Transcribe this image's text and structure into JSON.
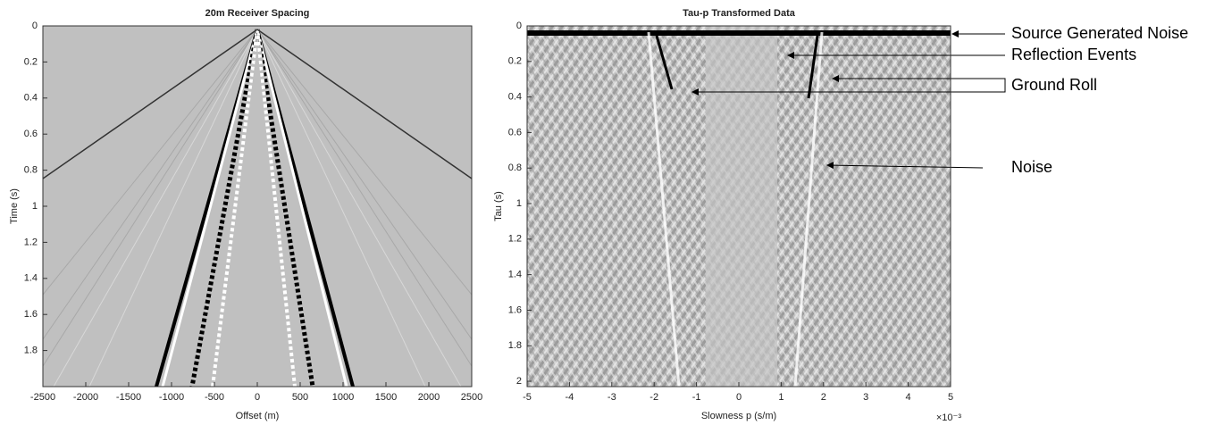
{
  "chart_data": [
    {
      "type": "image",
      "title": "20m Receiver Spacing",
      "xlabel": "Offset (m)",
      "ylabel": "Time (s)",
      "xlim": [
        -2500,
        2500
      ],
      "ylim": [
        0,
        2
      ],
      "y_reversed": true,
      "xticks": [
        -2500,
        -2000,
        -1500,
        -1000,
        -500,
        0,
        500,
        1000,
        1500,
        2000,
        2500
      ],
      "yticks": [
        0,
        0.2,
        0.4,
        0.6,
        0.8,
        1,
        1.2,
        1.4,
        1.6,
        1.8
      ]
    },
    {
      "type": "image",
      "title": "Tau-p Transformed Data",
      "xlabel": "Slowness p (s/m)",
      "ylabel": "Tau (s)",
      "xlim": [
        -5,
        5
      ],
      "ylim": [
        0,
        2.03
      ],
      "y_reversed": true,
      "x_multiplier": "×10⁻³",
      "xticks": [
        -5,
        -4,
        -3,
        -2,
        -1,
        0,
        1,
        2,
        3,
        4,
        5
      ],
      "yticks": [
        0,
        0.2,
        0.4,
        0.6,
        0.8,
        1,
        1.2,
        1.4,
        1.6,
        1.8,
        2
      ]
    }
  ],
  "annotations": [
    "Source Generated Noise",
    "Reflection Events",
    "Ground Roll",
    "Noise"
  ]
}
